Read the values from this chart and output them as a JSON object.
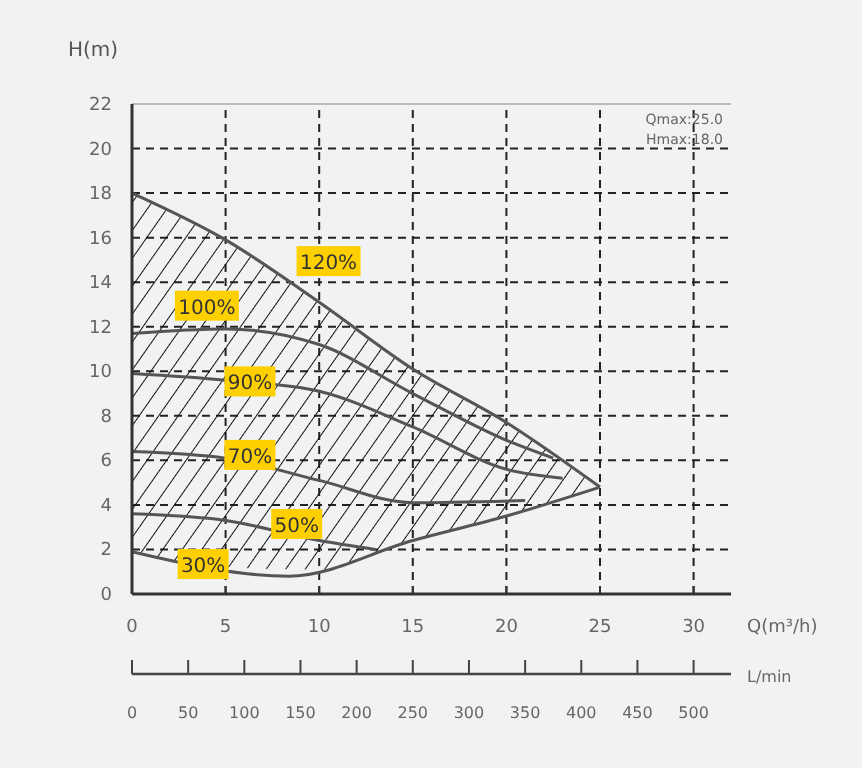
{
  "chart_data": {
    "type": "line",
    "xlabel": "Q(m³/h)",
    "ylabel": "H(m)",
    "x2label": "L/min",
    "xlim": [
      0,
      32
    ],
    "xticks": [
      0,
      5,
      10,
      15,
      20,
      25,
      30
    ],
    "ylim": [
      0,
      22
    ],
    "yticks": [
      0,
      2,
      4,
      6,
      8,
      10,
      12,
      14,
      16,
      18,
      20,
      22
    ],
    "x2lim": [
      0,
      533.3
    ],
    "x2ticks": [
      0,
      50,
      100,
      150,
      200,
      250,
      300,
      350,
      400,
      450,
      500
    ],
    "grid": true,
    "marker": "none",
    "line_style": "solid",
    "series": [
      {
        "color": "#555555",
        "x": [
          0,
          5,
          10,
          15,
          20,
          25
        ],
        "values": [
          18,
          15.9,
          13.1,
          10.1,
          7.7,
          4.8
        ],
        "upper": [
          18,
          15.9,
          13.1,
          10.1,
          7.7,
          4.8
        ],
        "lower": [
          1.9,
          1.2,
          1.1,
          2.4,
          3.5,
          4.8
        ]
      },
      {
        "color": "#555555",
        "x": [
          0,
          5,
          10,
          15,
          20,
          22.5
        ],
        "values": [
          11.7,
          11.9,
          11.2,
          9,
          6.9,
          6.1
        ]
      },
      {
        "color": "#555555",
        "x": [
          0,
          5,
          10,
          15,
          20,
          23
        ],
        "values": [
          9.9,
          9.6,
          9.1,
          7.5,
          5.6,
          5.2
        ]
      },
      {
        "color": "#555555",
        "x": [
          0,
          5,
          10,
          15,
          21
        ],
        "values": [
          6.4,
          6.1,
          5.1,
          4.1,
          4.2
        ]
      },
      {
        "color": "#555555",
        "x": [
          0,
          5,
          10,
          13
        ],
        "values": [
          3.6,
          3.3,
          2.4,
          2.0
        ]
      },
      {
        "color": "#555555",
        "x": [
          0,
          8.4,
          15,
          20,
          25
        ],
        "values": [
          1.9,
          0.8,
          2.4,
          3.5,
          4.8
        ]
      }
    ],
    "annotations": [
      {
        "text": "120%",
        "x": 10.5,
        "y": 14.9
      },
      {
        "text": "100%",
        "x": 4,
        "y": 12.9
      },
      {
        "text": "90%",
        "x": 6.3,
        "y": 9.5
      },
      {
        "text": "70%",
        "x": 6.3,
        "y": 6.2
      },
      {
        "text": "50%",
        "x": 8.8,
        "y": 3.1
      },
      {
        "text": "30%",
        "x": 3.8,
        "y": 1.3
      },
      "Qmax:25.0",
      "Hmax:18.0"
    ]
  }
}
